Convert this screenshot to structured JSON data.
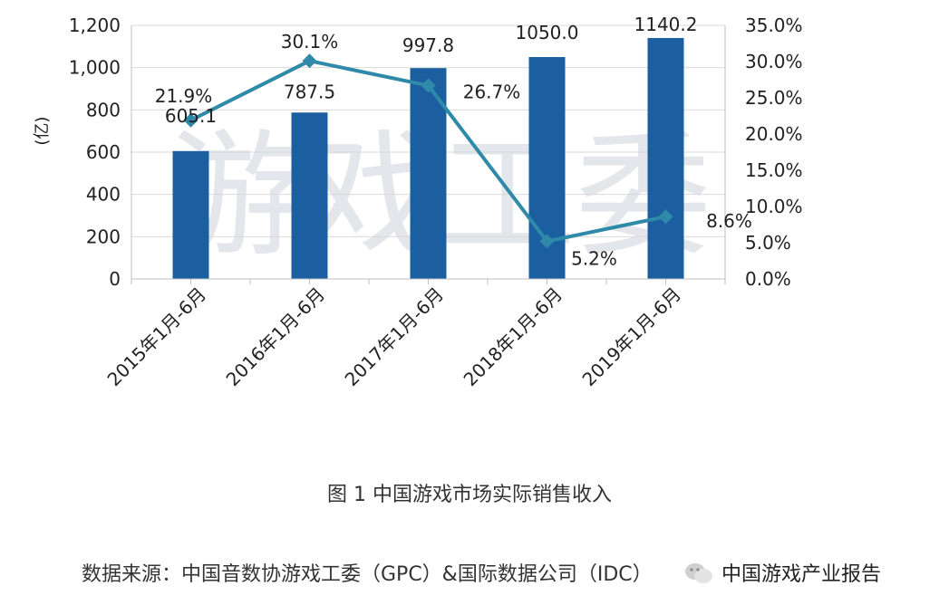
{
  "chart_data": {
    "type": "bar+line",
    "categories": [
      "2015年1月-6月",
      "2016年1月-6月",
      "2017年1月-6月",
      "2018年1月-6月",
      "2019年1月-6月"
    ],
    "series": [
      {
        "type": "bar",
        "axis": "left",
        "values": [
          605.1,
          787.5,
          997.8,
          1050.0,
          1140.2
        ],
        "labels": [
          "605.1",
          "787.5",
          "997.8",
          "1050.0",
          "1140.2"
        ],
        "color": "#1b5fa0"
      },
      {
        "type": "line",
        "axis": "right",
        "values": [
          21.9,
          30.1,
          26.7,
          5.2,
          8.6
        ],
        "labels": [
          "21.9%",
          "30.1%",
          "26.7%",
          "5.2%",
          "8.6%"
        ],
        "color": "#2e8aa8"
      }
    ],
    "ylabel": "(亿)",
    "ylim": [
      0,
      1200
    ],
    "yticks": [
      "0",
      "200",
      "400",
      "600",
      "800",
      "1,000",
      "1,200"
    ],
    "y2lim": [
      0,
      35
    ],
    "y2ticks": [
      "0.0%",
      "5.0%",
      "10.0%",
      "15.0%",
      "20.0%",
      "25.0%",
      "30.0%",
      "35.0%"
    ],
    "grid": "horizontal"
  },
  "watermark": "游戏工委",
  "caption": "图 1  中国游戏市场实际销售收入",
  "source": "数据来源：中国音数协游戏工委（GPC）&国际数据公司（IDC）",
  "overlay_account": "中国游戏产业报告",
  "icon": "wechat-icon"
}
